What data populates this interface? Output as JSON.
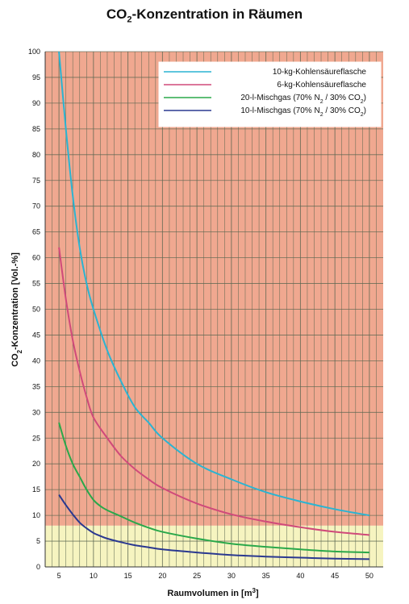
{
  "chart_data": {
    "type": "line",
    "title_main": "CO",
    "title_sub": "2",
    "title_rest": "-Konzentration in Räumen",
    "xlabel_main": "Raumvolumen in [m",
    "xlabel_sup": "3",
    "xlabel_end": "]",
    "ylabel_main": "CO",
    "ylabel_sub": "2",
    "ylabel_rest": "-Konzentration [Vol.-%]",
    "xlim": [
      3,
      52
    ],
    "ylim": [
      0,
      100
    ],
    "x_ticks": [
      "5",
      "10",
      "15",
      "20",
      "25",
      "30",
      "35",
      "40",
      "45",
      "50"
    ],
    "y_ticks": [
      "0",
      "5",
      "10",
      "15",
      "20",
      "25",
      "30",
      "35",
      "40",
      "45",
      "50",
      "55",
      "60",
      "65",
      "70",
      "75",
      "80",
      "85",
      "90",
      "95",
      "100"
    ],
    "zones": [
      {
        "from": 8,
        "to": 100,
        "color": "#f0a890"
      },
      {
        "from": 0,
        "to": 8,
        "color": "#f6f4c0"
      }
    ],
    "grid": true,
    "legend_position": "top-right",
    "series": [
      {
        "label_main": "10-kg-Kohlensäureflasche",
        "color": "#2ab4d2",
        "x": [
          5,
          6,
          7,
          8,
          9,
          10,
          12,
          14,
          16,
          18,
          20,
          25,
          30,
          35,
          40,
          45,
          50
        ],
        "y": [
          100,
          85,
          72,
          62,
          55,
          50,
          42,
          36,
          31,
          28,
          25,
          20,
          17,
          14.5,
          12.7,
          11.2,
          10
        ]
      },
      {
        "label_main": "6-kg-Kohlensäureflasche",
        "color": "#d04a7a",
        "x": [
          5,
          6,
          7,
          8,
          9,
          10,
          12,
          14,
          16,
          18,
          20,
          25,
          30,
          35,
          40,
          45,
          50
        ],
        "y": [
          62,
          52,
          44,
          38,
          33,
          29,
          25,
          21.5,
          19,
          17,
          15.3,
          12.3,
          10.2,
          8.8,
          7.7,
          6.8,
          6.2
        ]
      },
      {
        "label_main": "20-l-Mischgas (70% N",
        "label_sub1": "2",
        "label_mid": " / 30% CO",
        "label_sub2": "2",
        "label_end": ")",
        "color": "#2aa84a",
        "x": [
          5,
          6,
          7,
          8,
          9,
          10,
          11,
          12,
          14,
          16,
          18,
          20,
          25,
          30,
          35,
          40,
          45,
          50
        ],
        "y": [
          28,
          23.5,
          20,
          17.5,
          15,
          13,
          11.8,
          11,
          9.8,
          8.6,
          7.6,
          6.8,
          5.5,
          4.5,
          3.9,
          3.4,
          3.0,
          2.8
        ]
      },
      {
        "label_main": "10-l-Mischgas (70% N",
        "label_sub1": "2",
        "label_mid": " / 30% CO",
        "label_sub2": "2",
        "label_end": ")",
        "color": "#2a3890",
        "x": [
          5,
          6,
          7,
          8,
          9,
          10,
          11,
          12,
          14,
          16,
          18,
          20,
          25,
          30,
          35,
          40,
          45,
          50
        ],
        "y": [
          14,
          12,
          10.2,
          8.6,
          7.5,
          6.6,
          6.0,
          5.5,
          4.8,
          4.2,
          3.8,
          3.4,
          2.8,
          2.3,
          2.0,
          1.8,
          1.6,
          1.5
        ]
      }
    ]
  }
}
